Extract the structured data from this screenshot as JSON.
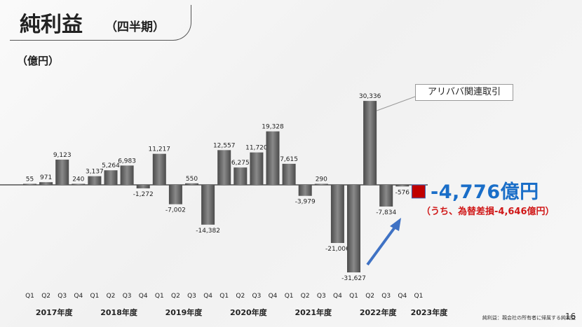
{
  "header": {
    "title": "純利益",
    "subtitle": "（四半期）",
    "unit": "（億円）"
  },
  "highlight": {
    "value": "-4,776億円",
    "note": "（うち、為替差損-4,646億円）",
    "callout": "アリババ関連取引"
  },
  "footer": {
    "footnote": "純利益：親会社の所有者に帰属する純利益",
    "page": "16"
  },
  "colors": {
    "bar": "#6e6e6e",
    "highlight_bar": "#c00000",
    "highlight_text": "#1a6ec8",
    "note_text": "#d01818",
    "arrow": "#3f72c4"
  },
  "chart_data": {
    "type": "bar",
    "fiscal_years": [
      "2017年度",
      "2018年度",
      "2019年度",
      "2020年度",
      "2021年度",
      "2022年度",
      "2023年度"
    ],
    "categories": [
      "Q1",
      "Q2",
      "Q3",
      "Q4",
      "Q1",
      "Q2",
      "Q3",
      "Q4",
      "Q1",
      "Q2",
      "Q3",
      "Q4",
      "Q1",
      "Q2",
      "Q3",
      "Q4",
      "Q1",
      "Q2",
      "Q3",
      "Q4",
      "Q1",
      "Q2",
      "Q3",
      "Q4",
      "Q1"
    ],
    "values": [
      55,
      971,
      9123,
      240,
      3137,
      5264,
      6983,
      -1272,
      11217,
      -7002,
      550,
      -14382,
      12557,
      6275,
      11720,
      19328,
      7615,
      -3979,
      290,
      -21006,
      -31627,
      30336,
      -7834,
      -576,
      -4776
    ],
    "labels": [
      "55",
      "971",
      "9,123",
      "240",
      "3,137",
      "5,264",
      "6,983",
      "-1,272",
      "11,217",
      "-7,002",
      "550",
      "-14,382",
      "12,557",
      "6,275",
      "11,720",
      "19,328",
      "7,615",
      "-3,979",
      "290",
      "-21,006",
      "-31,627",
      "30,336",
      "-7,834",
      "-576",
      ""
    ],
    "highlight_index": 24,
    "ylim": [
      -32000,
      32000
    ]
  }
}
